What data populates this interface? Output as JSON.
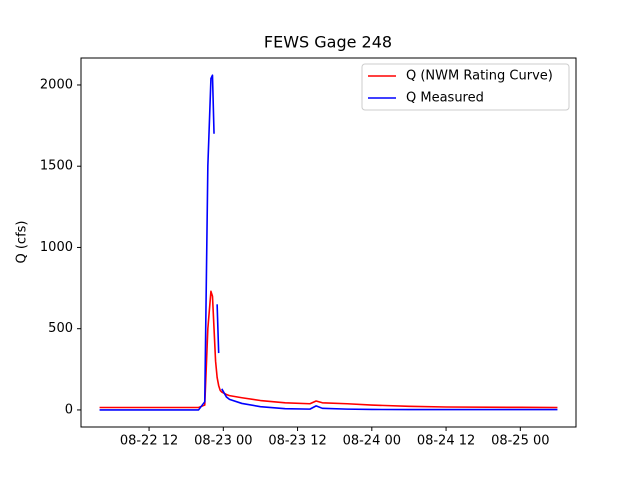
{
  "chart_data": {
    "type": "line",
    "title": "FEWS Gage 248",
    "ylabel": "Q (cfs)",
    "x": [
      "08-22 04:00",
      "08-22 20:00",
      "08-22 21:00",
      "08-22 21:30",
      "08-22 22:00",
      "08-22 22:15",
      "08-22 22:30",
      "08-22 22:45",
      "08-22 23:00",
      "08-22 23:15",
      "08-22 23:30",
      "08-22 23:45",
      "08-23 00:30",
      "08-23 01:00",
      "08-23 03:00",
      "08-23 06:00",
      "08-23 10:00",
      "08-23 14:00",
      "08-23 15:00",
      "08-23 16:00",
      "08-23 20:00",
      "08-24 00:00",
      "08-24 06:00",
      "08-24 12:00",
      "08-25 00:00",
      "08-25 06:00"
    ],
    "series": [
      {
        "name": "Q (NWM Rating Curve)",
        "color": "#ff0000",
        "values": [
          15,
          15,
          30,
          500,
          730,
          700,
          500,
          300,
          200,
          150,
          120,
          110,
          95,
          88,
          75,
          58,
          44,
          38,
          55,
          44,
          38,
          30,
          22,
          18,
          16,
          15
        ]
      },
      {
        "name": "Q Measured",
        "color": "#0000ff",
        "values": [
          0,
          0,
          50,
          1500,
          2040,
          2060,
          1700,
          null,
          650,
          350,
          null,
          130,
          80,
          65,
          40,
          20,
          8,
          5,
          25,
          10,
          5,
          3,
          2,
          2,
          2,
          2
        ]
      }
    ],
    "xlim": [
      "08-22 01:00",
      "08-25 09:00"
    ],
    "xticks": [
      {
        "value": "08-22 12:00",
        "label": "08-22 12"
      },
      {
        "value": "08-23 00:00",
        "label": "08-23 00"
      },
      {
        "value": "08-23 12:00",
        "label": "08-23 12"
      },
      {
        "value": "08-24 00:00",
        "label": "08-24 00"
      },
      {
        "value": "08-24 12:00",
        "label": "08-24 12"
      },
      {
        "value": "08-25 00:00",
        "label": "08-25 00"
      }
    ],
    "ylim": [
      -105,
      2166
    ],
    "yticks": [
      0,
      500,
      1000,
      1500,
      2000
    ],
    "legend": "upper right"
  }
}
